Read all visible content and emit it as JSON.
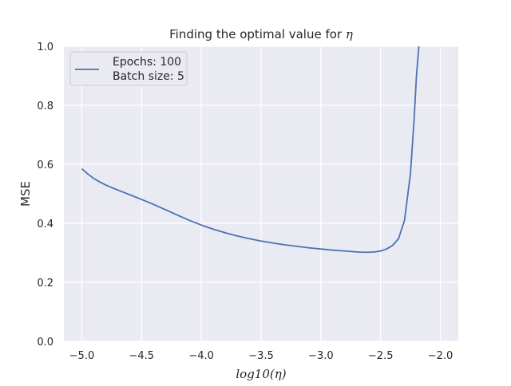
{
  "chart_data": {
    "type": "line",
    "title": "Finding the optimal value for η",
    "title_prefix": "Finding the optimal value for ",
    "title_symbol": "η",
    "xlabel": "log10(η)",
    "xlabel_prefix": "log10(",
    "xlabel_symbol": "η",
    "xlabel_suffix": ")",
    "ylabel": "MSE",
    "xlim": [
      -5.15,
      -1.85
    ],
    "ylim": [
      0.0,
      1.0
    ],
    "x_ticks": [
      -5.0,
      -4.5,
      -4.0,
      -3.5,
      -3.0,
      -2.5,
      -2.0
    ],
    "x_tick_labels": [
      "−5.0",
      "−4.5",
      "−4.0",
      "−3.5",
      "−3.0",
      "−2.5",
      "−2.0"
    ],
    "y_ticks": [
      0.0,
      0.2,
      0.4,
      0.6,
      0.8,
      1.0
    ],
    "y_tick_labels": [
      "0.0",
      "0.2",
      "0.4",
      "0.6",
      "0.8",
      "1.0"
    ],
    "grid": true,
    "legend_position": "top-left",
    "legend_lines": [
      "Epochs: 100",
      "Batch size: 5"
    ],
    "series": [
      {
        "color": "#4c72b0",
        "x": [
          -5.0,
          -4.95,
          -4.9,
          -4.85,
          -4.8,
          -4.75,
          -4.7,
          -4.6,
          -4.5,
          -4.4,
          -4.3,
          -4.2,
          -4.1,
          -4.0,
          -3.9,
          -3.8,
          -3.7,
          -3.6,
          -3.5,
          -3.4,
          -3.3,
          -3.2,
          -3.1,
          -3.0,
          -2.9,
          -2.8,
          -2.7,
          -2.65,
          -2.6,
          -2.55,
          -2.5,
          -2.45,
          -2.4,
          -2.35,
          -2.3,
          -2.25,
          -2.22,
          -2.2,
          -2.18
        ],
        "y": [
          0.585,
          0.567,
          0.552,
          0.54,
          0.53,
          0.521,
          0.513,
          0.497,
          0.481,
          0.464,
          0.446,
          0.428,
          0.41,
          0.394,
          0.38,
          0.368,
          0.357,
          0.348,
          0.34,
          0.333,
          0.327,
          0.322,
          0.317,
          0.313,
          0.309,
          0.306,
          0.303,
          0.302,
          0.302,
          0.303,
          0.306,
          0.313,
          0.325,
          0.348,
          0.41,
          0.57,
          0.75,
          0.9,
          1.0
        ]
      }
    ]
  },
  "colors": {
    "plot_background": "#eaeaf2",
    "grid": "#ffffff",
    "text": "#262626",
    "line": "#4c72b0"
  }
}
